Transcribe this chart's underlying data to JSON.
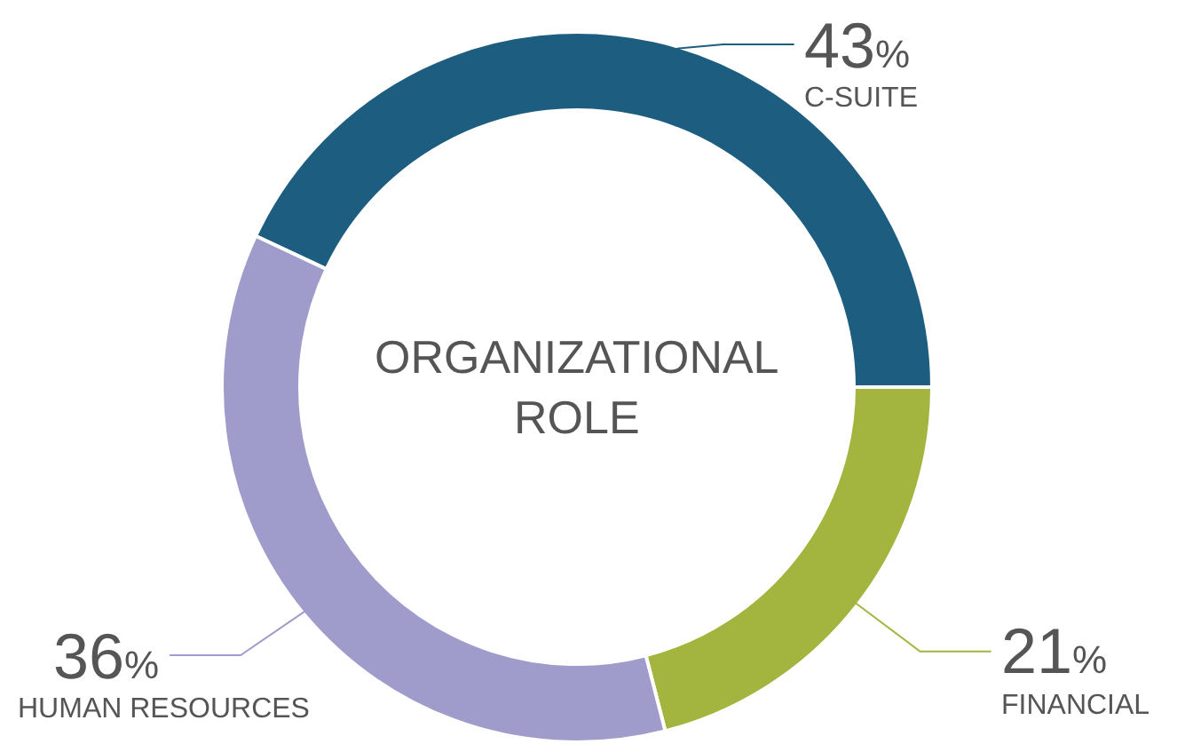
{
  "chart_data": {
    "type": "donut",
    "title": "ORGANIZATIONAL ROLE",
    "categories": [
      "C-SUITE",
      "FINANCIAL",
      "HUMAN RESOURCES"
    ],
    "values": [
      43,
      21,
      36
    ],
    "value_labels": [
      "43%",
      "21%",
      "36%"
    ],
    "colors": [
      "#1d5e80",
      "#a3b43f",
      "#9f9bcb"
    ],
    "legend": false
  }
}
